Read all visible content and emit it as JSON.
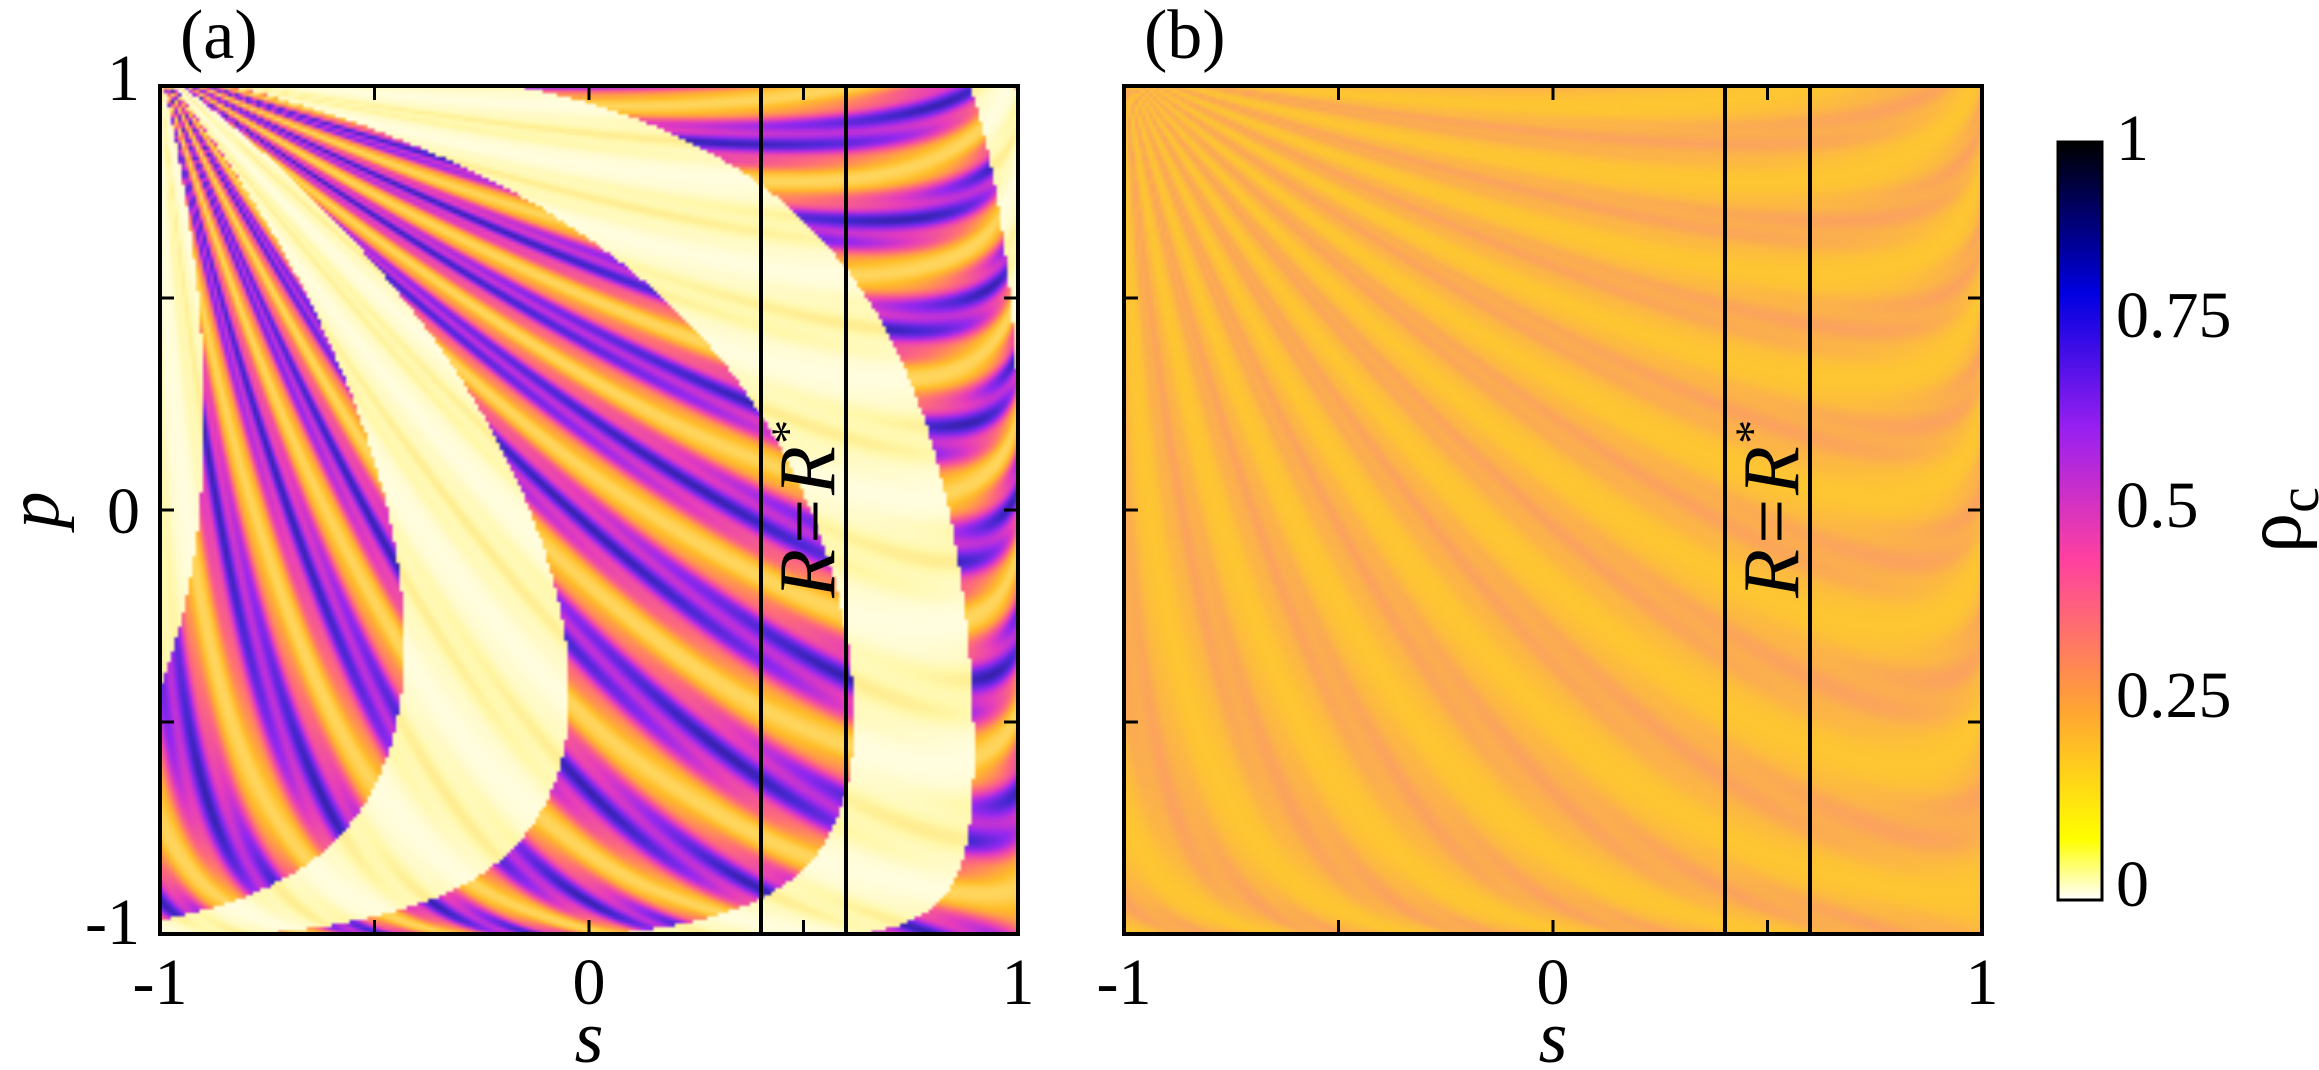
{
  "chart_data": [
    {
      "type": "heatmap",
      "panel_label": "(a)",
      "xlabel": "s",
      "ylabel": "p",
      "xlim": [
        -1,
        1
      ],
      "ylim": [
        -1,
        1
      ],
      "x_ticks": [
        -1,
        -0.5,
        0,
        0.5,
        1
      ],
      "x_tick_labels": [
        "-1",
        "",
        "0",
        "",
        "1"
      ],
      "y_ticks": [
        -1,
        -0.5,
        0,
        0.5,
        1
      ],
      "y_tick_labels": [
        "-1",
        "",
        "0",
        "",
        "1"
      ],
      "pattern": "fine curved stripes from (-1,1) to (1,-1); values span 0 to 0.75, with broad near-zero bands",
      "region_box": {
        "s_range": [
          0.4,
          0.6
        ],
        "p_range": [
          -1,
          1
        ],
        "label_main": "R=R",
        "label_sup": "*"
      }
    },
    {
      "type": "heatmap",
      "panel_label": "(b)",
      "xlabel": "s",
      "ylabel": "",
      "xlim": [
        -1,
        1
      ],
      "ylim": [
        -1,
        1
      ],
      "x_ticks": [
        -1,
        -0.5,
        0,
        0.5,
        1
      ],
      "x_tick_labels": [
        "-1",
        "",
        "0",
        "",
        "1"
      ],
      "y_ticks": [
        -1,
        -0.5,
        0,
        0.5,
        1
      ],
      "y_tick_labels": [
        "",
        "",
        "",
        "",
        ""
      ],
      "pattern": "fine curved stripes from (-1,1) to (1,-1); values concentrated around 0.15 to 0.3",
      "region_box": {
        "s_range": [
          0.4,
          0.6
        ],
        "p_range": [
          -1,
          1
        ],
        "label_main": "R=R",
        "label_sup": "*"
      }
    }
  ],
  "colorbar": {
    "label": "ρ",
    "label_sub": "c",
    "range": [
      0,
      1
    ],
    "tick_values": [
      0,
      0.25,
      0.5,
      0.75,
      1
    ],
    "tick_labels": [
      "0",
      "0.25",
      "0.5",
      "0.75",
      "1"
    ],
    "colors": [
      "#ffffff",
      "#ffff00",
      "#ffa533",
      "#ff40a0",
      "#8000ff",
      "#0000e0",
      "#000000"
    ]
  }
}
